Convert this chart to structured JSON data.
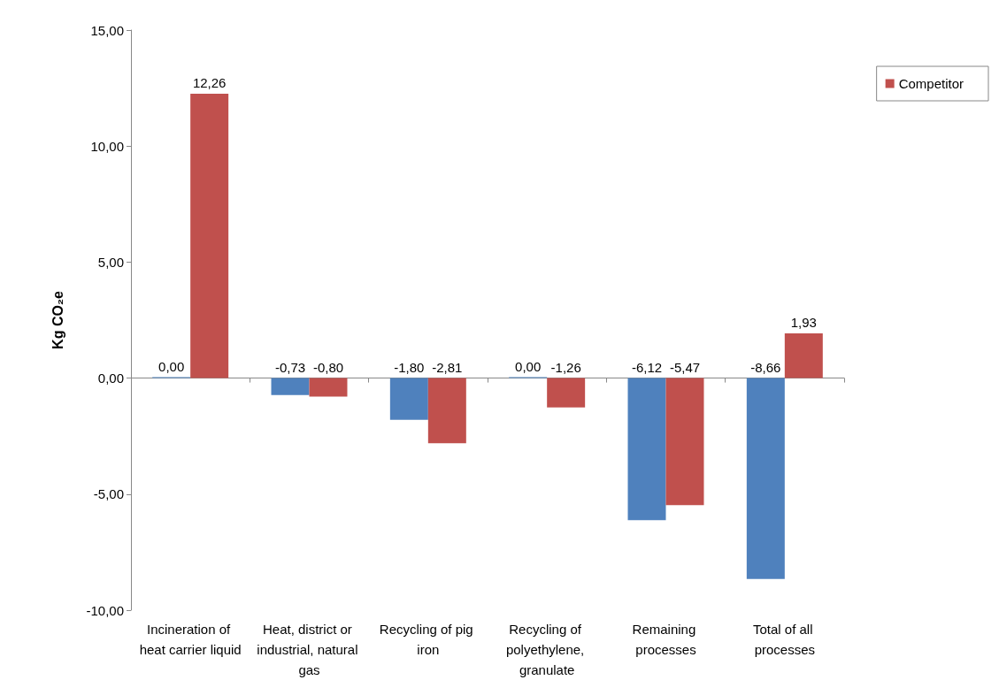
{
  "chart_data": {
    "type": "bar",
    "ylabel": "Kg CO₂e",
    "categories": [
      "Incineration of heat carrier liquid",
      "Heat, district or industrial, natural gas",
      "Recycling of pig iron",
      "Recycling of polyethylene, granulate",
      "Remaining processes",
      "Total of all processes"
    ],
    "series": [
      {
        "color": "#4f81bd",
        "values": [
          0,
          -0.73,
          -1.8,
          0,
          -6.12,
          -8.66
        ],
        "value_labels": [
          "0,00",
          "-0,73",
          "-1,80",
          "0,00",
          "-6,12",
          "-8,66"
        ]
      },
      {
        "name": "Competitor",
        "color": "#c0504d",
        "values": [
          12.26,
          -0.8,
          -2.81,
          -1.26,
          -5.47,
          1.93
        ],
        "value_labels": [
          "12,26",
          "-0,80",
          "-2,81",
          "-1,26",
          "-5,47",
          "1,93"
        ]
      }
    ],
    "ylim": [
      -10,
      15
    ],
    "yticks": [
      {
        "value": -10,
        "label": "-10,00"
      },
      {
        "value": -5,
        "label": "-5,00"
      },
      {
        "value": 0,
        "label": "0,00"
      },
      {
        "value": 5,
        "label": "5,00"
      },
      {
        "value": 10,
        "label": "10,00"
      },
      {
        "value": 15,
        "label": "15,00"
      }
    ],
    "legend": "right"
  }
}
